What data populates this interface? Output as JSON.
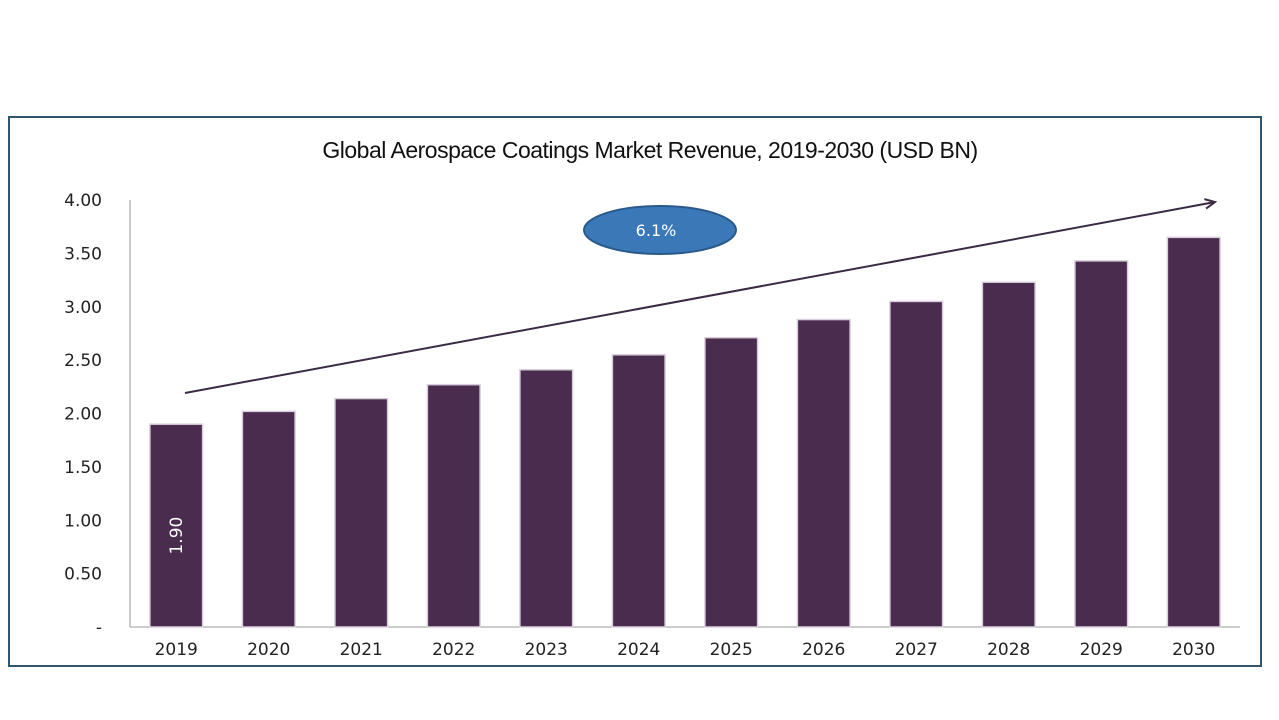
{
  "chart_data": {
    "type": "bar",
    "title": "Global Aerospace Coatings Market Revenue, 2019-2030 (USD BN)",
    "xlabel": "",
    "ylabel": "",
    "categories": [
      "2019",
      "2020",
      "2021",
      "2022",
      "2023",
      "2024",
      "2025",
      "2026",
      "2027",
      "2028",
      "2029",
      "2030"
    ],
    "values": [
      1.9,
      2.02,
      2.14,
      2.27,
      2.41,
      2.55,
      2.71,
      2.88,
      3.05,
      3.23,
      3.43,
      3.65
    ],
    "ylim": [
      0,
      4
    ],
    "y_ticks": [
      {
        "value": 0,
        "label": "-"
      },
      {
        "value": 0.5,
        "label": "0.50"
      },
      {
        "value": 1.0,
        "label": "1.00"
      },
      {
        "value": 1.5,
        "label": "1.50"
      },
      {
        "value": 2.0,
        "label": "2.00"
      },
      {
        "value": 2.5,
        "label": "2.50"
      },
      {
        "value": 3.0,
        "label": "3.00"
      },
      {
        "value": 3.5,
        "label": "3.50"
      },
      {
        "value": 4.0,
        "label": "4.00"
      }
    ],
    "data_labels": [
      {
        "index": 0,
        "text": "1.90"
      }
    ],
    "annotation": {
      "text": "6.1%",
      "type": "cagr-arrow"
    },
    "grid": false,
    "legend": "none",
    "colors": {
      "bar": "#4a2c4f",
      "bar_edge": "#d9cfdc",
      "arrow": "#3a2a45",
      "ellipse_fill": "#3a78b8",
      "ellipse_edge": "#2a5a8c",
      "frame": "#31566b",
      "axis": "#9a9a9a"
    }
  }
}
